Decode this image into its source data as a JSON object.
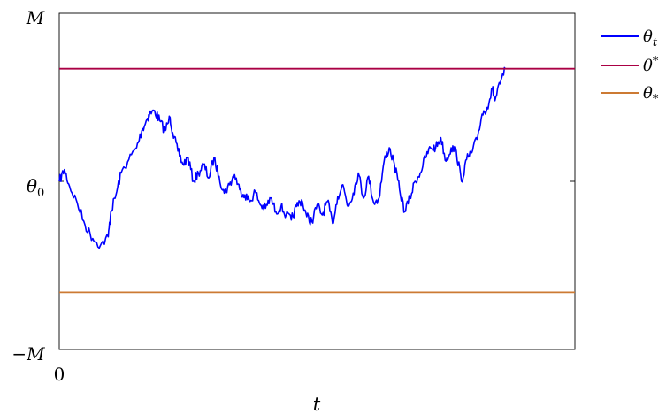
{
  "chart_data": {
    "type": "line",
    "xlabel": "t",
    "x_tick_labels": [
      "0"
    ],
    "y_tick_labels": [
      {
        "value": 1,
        "text": "M"
      },
      {
        "value": 0,
        "text": "θ",
        "sub": "0"
      },
      {
        "value": -1,
        "text": "−M"
      }
    ],
    "xlim": [
      0,
      1
    ],
    "ylim": [
      -1,
      1
    ],
    "grid": false,
    "legend_position": "outside-top-right",
    "series": [
      {
        "name": "θ",
        "name_sub": "t",
        "color": "#0000ff",
        "kind": "path",
        "x": [
          0,
          0.01,
          0.02,
          0.035,
          0.05,
          0.065,
          0.08,
          0.095,
          0.1,
          0.11,
          0.12,
          0.135,
          0.15,
          0.16,
          0.17,
          0.175,
          0.185,
          0.195,
          0.205,
          0.215,
          0.22,
          0.23,
          0.24,
          0.25,
          0.26,
          0.27,
          0.28,
          0.29,
          0.3,
          0.31,
          0.32,
          0.33,
          0.34,
          0.35,
          0.36,
          0.37,
          0.38,
          0.39,
          0.4,
          0.41,
          0.42,
          0.43,
          0.44,
          0.45,
          0.46,
          0.47,
          0.48,
          0.49,
          0.5,
          0.51,
          0.52,
          0.53,
          0.54,
          0.55,
          0.56,
          0.57,
          0.58,
          0.59,
          0.6,
          0.61,
          0.62,
          0.63,
          0.64,
          0.65,
          0.66,
          0.67,
          0.68,
          0.69,
          0.7,
          0.71,
          0.72,
          0.73,
          0.74,
          0.75,
          0.76,
          0.77,
          0.78,
          0.79,
          0.8,
          0.81,
          0.82,
          0.83,
          0.84,
          0.845,
          0.855,
          0.865
        ],
        "y": [
          0.0,
          0.07,
          -0.03,
          -0.13,
          -0.26,
          -0.34,
          -0.38,
          -0.33,
          -0.18,
          -0.08,
          0.05,
          0.13,
          0.2,
          0.3,
          0.37,
          0.4,
          0.42,
          0.36,
          0.3,
          0.38,
          0.29,
          0.18,
          0.1,
          0.14,
          0.0,
          0.05,
          0.1,
          0.02,
          0.14,
          0.03,
          -0.07,
          -0.02,
          0.04,
          -0.05,
          -0.08,
          -0.12,
          -0.06,
          -0.14,
          -0.16,
          -0.1,
          -0.18,
          -0.15,
          -0.2,
          -0.23,
          -0.15,
          -0.11,
          -0.21,
          -0.24,
          -0.14,
          -0.2,
          -0.12,
          -0.25,
          -0.09,
          -0.02,
          -0.15,
          -0.07,
          0.05,
          -0.1,
          0.03,
          -0.13,
          -0.1,
          0.12,
          0.2,
          0.1,
          -0.05,
          -0.18,
          -0.1,
          0.0,
          0.05,
          0.14,
          0.2,
          0.2,
          0.26,
          0.12,
          0.2,
          0.18,
          0.0,
          0.13,
          0.17,
          0.25,
          0.4,
          0.44,
          0.55,
          0.48,
          0.58,
          0.67
        ]
      },
      {
        "name": "θ",
        "name_sup": "*",
        "color": "#aa0044",
        "kind": "hline",
        "y": 0.67
      },
      {
        "name": "θ",
        "name_sub": "*",
        "color": "#cc7a33",
        "kind": "hline",
        "y": -0.66
      }
    ]
  }
}
